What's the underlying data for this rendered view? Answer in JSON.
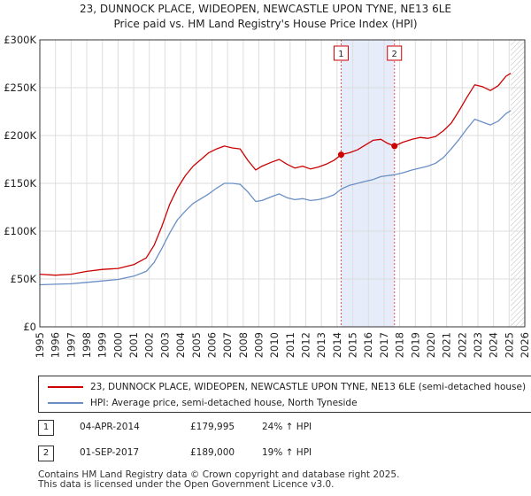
{
  "chart_data": {
    "type": "line",
    "title": "23, DUNNOCK PLACE, WIDEOPEN, NEWCASTLE UPON TYNE, NE13 6LE",
    "subtitle": "Price paid vs. HM Land Registry's House Price Index (HPI)",
    "xlim": [
      1995.0,
      2026.0
    ],
    "ylim": [
      0,
      300000
    ],
    "x_ticks": [
      1995,
      1996,
      1997,
      1998,
      1999,
      2000,
      2001,
      2002,
      2003,
      2004,
      2005,
      2006,
      2007,
      2008,
      2009,
      2010,
      2011,
      2012,
      2013,
      2014,
      2015,
      2016,
      2017,
      2018,
      2019,
      2020,
      2021,
      2022,
      2023,
      2024,
      2025,
      2026
    ],
    "y_ticks": [
      {
        "value": 0,
        "label": "£0"
      },
      {
        "value": 50000,
        "label": "£50K"
      },
      {
        "value": 100000,
        "label": "£100K"
      },
      {
        "value": 150000,
        "label": "£150K"
      },
      {
        "value": 200000,
        "label": "£200K"
      },
      {
        "value": 250000,
        "label": "£250K"
      },
      {
        "value": 300000,
        "label": "£300K"
      }
    ],
    "grid": true,
    "shaded_span": [
      2014.26,
      2017.67
    ],
    "future_hatch_start": 2025.1,
    "series": [
      {
        "name": "23, DUNNOCK PLACE, WIDEOPEN, NEWCASTLE UPON TYNE, NE13 6LE (semi-detached house)",
        "color": "#cc0000",
        "x": [
          1995.0,
          1996.0,
          1997.0,
          1998.0,
          1999.0,
          2000.0,
          2001.0,
          2001.8,
          2002.3,
          2002.8,
          2003.3,
          2003.8,
          2004.3,
          2004.8,
          2005.3,
          2005.8,
          2006.3,
          2006.8,
          2007.3,
          2007.8,
          2008.3,
          2008.8,
          2009.2,
          2009.8,
          2010.3,
          2010.8,
          2011.3,
          2011.8,
          2012.3,
          2012.8,
          2013.3,
          2013.8,
          2014.26,
          2014.8,
          2015.3,
          2015.8,
          2016.3,
          2016.8,
          2017.2,
          2017.67,
          2018.2,
          2018.8,
          2019.3,
          2019.8,
          2020.3,
          2020.8,
          2021.3,
          2021.8,
          2022.3,
          2022.8,
          2023.3,
          2023.8,
          2024.3,
          2024.8,
          2025.1
        ],
        "y": [
          55000,
          54000,
          55000,
          58000,
          60000,
          61000,
          65000,
          72000,
          85000,
          105000,
          128000,
          145000,
          158000,
          168000,
          175000,
          182000,
          186000,
          189000,
          187000,
          186000,
          174000,
          164000,
          168000,
          172000,
          175000,
          170000,
          166000,
          168000,
          165000,
          167000,
          170000,
          174000,
          179995,
          182000,
          185000,
          190000,
          195000,
          196000,
          192000,
          189000,
          193000,
          196000,
          198000,
          197000,
          199000,
          205000,
          213000,
          226000,
          240000,
          253000,
          251000,
          247000,
          252000,
          262000,
          265000
        ]
      },
      {
        "name": "HPI: Average price, semi-detached house, North Tyneside",
        "color": "#6a8fc4",
        "x": [
          1995.0,
          1996.0,
          1997.0,
          1998.0,
          1999.0,
          2000.0,
          2001.0,
          2001.8,
          2002.3,
          2002.8,
          2003.3,
          2003.8,
          2004.3,
          2004.8,
          2005.3,
          2005.8,
          2006.3,
          2006.8,
          2007.3,
          2007.8,
          2008.3,
          2008.8,
          2009.2,
          2009.8,
          2010.3,
          2010.8,
          2011.3,
          2011.8,
          2012.3,
          2012.8,
          2013.3,
          2013.8,
          2014.26,
          2014.8,
          2015.3,
          2015.8,
          2016.3,
          2016.8,
          2017.2,
          2017.67,
          2018.2,
          2018.8,
          2019.3,
          2019.8,
          2020.3,
          2020.8,
          2021.3,
          2021.8,
          2022.3,
          2022.8,
          2023.3,
          2023.8,
          2024.3,
          2024.8,
          2025.1
        ],
        "y": [
          44000,
          44500,
          45000,
          46500,
          48000,
          49500,
          53000,
          58000,
          67000,
          82000,
          98000,
          112000,
          121000,
          129000,
          134000,
          139000,
          145000,
          150000,
          150000,
          149000,
          141000,
          131000,
          132000,
          136000,
          139000,
          135000,
          133000,
          134000,
          132000,
          133000,
          135000,
          138000,
          144000,
          148000,
          150000,
          152000,
          154000,
          157000,
          158000,
          159000,
          161000,
          164000,
          166000,
          168000,
          171000,
          177000,
          186000,
          196000,
          207000,
          217000,
          214000,
          211000,
          215000,
          223000,
          226000
        ]
      }
    ],
    "sale_markers": [
      {
        "label": "1",
        "x": 2014.26,
        "y": 179995
      },
      {
        "label": "2",
        "x": 2017.67,
        "y": 189000
      }
    ]
  },
  "legend": {
    "items": [
      {
        "label": "23, DUNNOCK PLACE, WIDEOPEN, NEWCASTLE UPON TYNE, NE13 6LE (semi-detached house)",
        "color": "#cc0000"
      },
      {
        "label": "HPI: Average price, semi-detached house, North Tyneside",
        "color": "#6a8fc4"
      }
    ]
  },
  "sales": [
    {
      "num": "1",
      "date": "04-APR-2014",
      "price": "£179,995",
      "hpi": "24% ↑ HPI"
    },
    {
      "num": "2",
      "date": "01-SEP-2017",
      "price": "£189,000",
      "hpi": "19% ↑ HPI"
    }
  ],
  "footer": {
    "line1": "Contains HM Land Registry data © Crown copyright and database right 2025.",
    "line2": "This data is licensed under the Open Government Licence v3.0."
  }
}
